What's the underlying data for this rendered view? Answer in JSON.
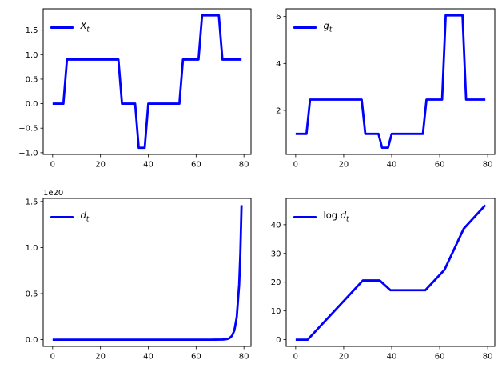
{
  "figure": {
    "background": "#ffffff",
    "line_color": "#0000ff",
    "axis_color": "#000000",
    "tick_label_color": "#000000",
    "tick_font_size": 10,
    "legend_font_size": 11.5,
    "line_width": 2.8
  },
  "chart_data": [
    {
      "id": "Xt",
      "type": "line",
      "title": "",
      "xlabel": "",
      "ylabel": "",
      "grid": false,
      "legend_position": "upper left",
      "legend": {
        "prefix": "",
        "variable": "X",
        "subscript": "t",
        "plain": "X_t"
      },
      "x": [
        0,
        4.5,
        6,
        27.5,
        29,
        34.5,
        36,
        38.5,
        40,
        53,
        54.5,
        61,
        62.5,
        69.5,
        71,
        79
      ],
      "y": [
        0,
        0,
        0.9,
        0.9,
        0,
        0,
        -0.9,
        -0.9,
        0,
        0,
        0.9,
        0.9,
        1.8,
        1.8,
        0.9,
        0.9
      ],
      "xlim": [
        -3.95,
        82.95
      ],
      "ylim": [
        -1.035,
        1.935
      ],
      "xticks": {
        "values": [
          0,
          20,
          40,
          60,
          80
        ],
        "labels": [
          "0",
          "20",
          "40",
          "60",
          "80"
        ]
      },
      "yticks": {
        "values": [
          1.5,
          1.0,
          0.5,
          0.0,
          -0.5,
          -1.0
        ],
        "labels": [
          "1.5",
          "1.0",
          "0.5",
          "0.0",
          "−0.5",
          "−1.0"
        ]
      },
      "offset_text": ""
    },
    {
      "id": "gt",
      "type": "line",
      "title": "",
      "xlabel": "",
      "ylabel": "",
      "grid": false,
      "legend_position": "upper left",
      "legend": {
        "prefix": "",
        "variable": "g",
        "subscript": "t",
        "plain": "g_t"
      },
      "x": [
        0,
        4.5,
        6,
        27.5,
        29,
        34.5,
        36,
        38.5,
        40,
        53,
        54.5,
        61,
        62.5,
        69.5,
        71,
        79
      ],
      "y": [
        1,
        1,
        2.46,
        2.46,
        1,
        1,
        0.41,
        0.41,
        1,
        1,
        2.46,
        2.46,
        6.05,
        6.05,
        2.46,
        2.46
      ],
      "xlim": [
        -3.95,
        82.95
      ],
      "ylim": [
        0.124,
        6.33
      ],
      "xticks": {
        "values": [
          0,
          20,
          40,
          60,
          80
        ],
        "labels": [
          "0",
          "20",
          "40",
          "60",
          "80"
        ]
      },
      "yticks": {
        "values": [
          6,
          4,
          2
        ],
        "labels": [
          "6",
          "4",
          "2"
        ]
      },
      "offset_text": ""
    },
    {
      "id": "dt",
      "type": "line",
      "title": "",
      "xlabel": "",
      "ylabel": "",
      "grid": false,
      "legend_position": "upper left",
      "legend": {
        "prefix": "",
        "variable": "d",
        "subscript": "t",
        "plain": "d_t"
      },
      "x": [
        0,
        40,
        55,
        60,
        63,
        66,
        68,
        70,
        71,
        72,
        73,
        74,
        75,
        76,
        77,
        78,
        78.5,
        79
      ],
      "y": [
        0,
        0,
        0,
        0,
        1e-05,
        5e-05,
        0.0001,
        0.0005,
        0.0012,
        0.0029,
        0.007,
        0.0171,
        0.0417,
        0.101,
        0.247,
        0.6,
        0.94,
        1.46
      ],
      "value_scale": "1e20",
      "xlim": [
        -3.95,
        82.95
      ],
      "ylim": [
        -0.073,
        1.533
      ],
      "xticks": {
        "values": [
          0,
          20,
          40,
          60,
          80
        ],
        "labels": [
          "0",
          "20",
          "40",
          "60",
          "80"
        ]
      },
      "yticks": {
        "values": [
          1.5,
          1.0,
          0.5,
          0.0
        ],
        "labels": [
          "1.5",
          "1.0",
          "0.5",
          "0.0"
        ]
      },
      "offset_text": "1e20"
    },
    {
      "id": "log-dt",
      "type": "line",
      "title": "",
      "xlabel": "",
      "ylabel": "",
      "grid": false,
      "legend_position": "upper left",
      "legend": {
        "prefix": "log ",
        "variable": "d",
        "subscript": "t",
        "plain": "log d_t"
      },
      "x": [
        0,
        5,
        28,
        35,
        39.5,
        54,
        62,
        70,
        79
      ],
      "y": [
        0,
        0,
        20.6,
        20.6,
        17.2,
        17.2,
        24.3,
        38.6,
        46.8
      ],
      "xlim": [
        -3.95,
        82.95
      ],
      "ylim": [
        -2.34,
        49.14
      ],
      "xticks": {
        "values": [
          0,
          20,
          40,
          60,
          80
        ],
        "labels": [
          "0",
          "20",
          "40",
          "60",
          "80"
        ]
      },
      "yticks": {
        "values": [
          40,
          30,
          20,
          10,
          0
        ],
        "labels": [
          "40",
          "30",
          "20",
          "10",
          "0"
        ]
      },
      "offset_text": ""
    }
  ]
}
